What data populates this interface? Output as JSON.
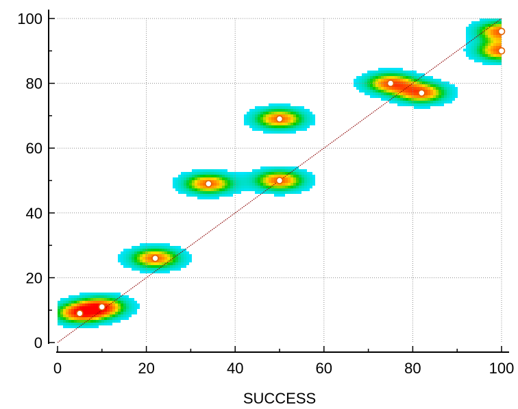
{
  "chart_data": {
    "type": "scatter",
    "title": "",
    "xlabel": "SUCCESS",
    "ylabel": "",
    "xlim": [
      0,
      100
    ],
    "ylim": [
      0,
      100
    ],
    "x_ticks": [
      "0",
      "20",
      "40",
      "60",
      "80",
      "100"
    ],
    "y_ticks": [
      "0",
      "20",
      "40",
      "60",
      "80",
      "100"
    ],
    "grid": true,
    "reference_line": {
      "x": [
        0,
        100
      ],
      "y": [
        0,
        100
      ],
      "color": "#8b0000",
      "style": "dotted"
    },
    "points": [
      {
        "x": 5,
        "y": 9
      },
      {
        "x": 10,
        "y": 11
      },
      {
        "x": 22,
        "y": 26
      },
      {
        "x": 34,
        "y": 49
      },
      {
        "x": 50,
        "y": 50
      },
      {
        "x": 50,
        "y": 69
      },
      {
        "x": 75,
        "y": 80
      },
      {
        "x": 82,
        "y": 77
      },
      {
        "x": 100,
        "y": 96
      },
      {
        "x": 100,
        "y": 90
      }
    ],
    "density": "heatmap (cyan → green → yellow → orange → red) around points",
    "colors": {
      "point_fill": "#ffffff",
      "point_stroke": "#e06000",
      "grid": "#8c8c8c",
      "axis": "#000000",
      "reference_line": "#8b0000",
      "density_low": "#00e5ff",
      "density_mid": "#00d000",
      "density_high": "#ffe000",
      "density_peak": "#ff0000"
    }
  }
}
